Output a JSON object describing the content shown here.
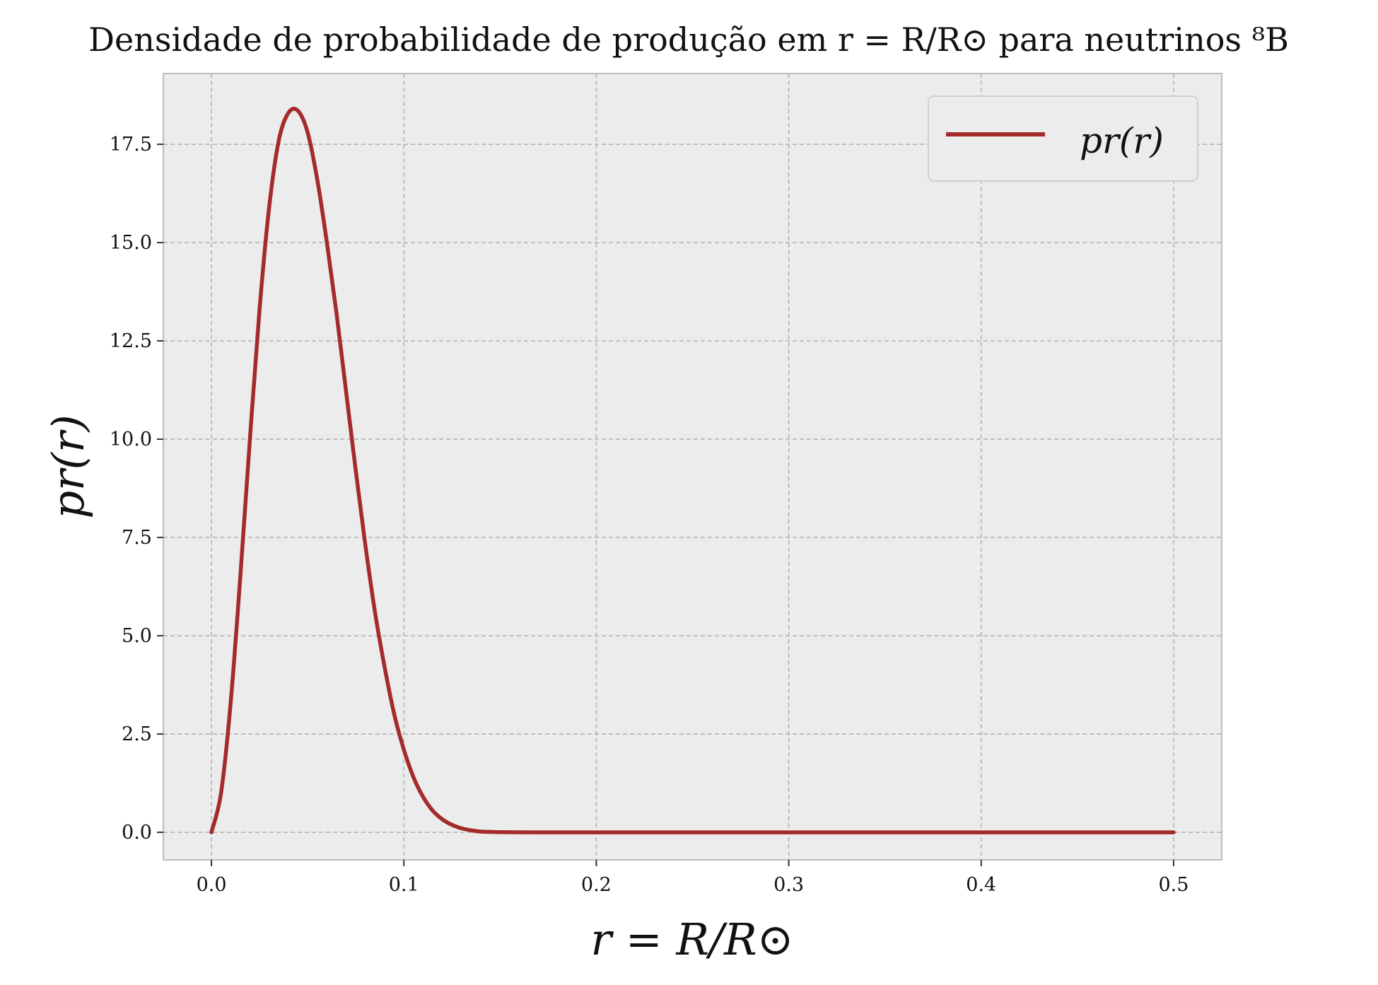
{
  "chart_data": {
    "type": "line",
    "title": "Densidade de probabilidade de produção em r = R/R⊙ para neutrinos ⁸B",
    "xlabel": "r = R/R⊙",
    "ylabel": "pr(r)",
    "xlim": [
      -0.025,
      0.525
    ],
    "ylim": [
      -0.7,
      19.3
    ],
    "x_ticks": [
      0.0,
      0.1,
      0.2,
      0.3,
      0.4,
      0.5
    ],
    "x_tick_labels": [
      "0.0",
      "0.1",
      "0.2",
      "0.3",
      "0.4",
      "0.5"
    ],
    "y_ticks": [
      0.0,
      2.5,
      5.0,
      7.5,
      10.0,
      12.5,
      15.0,
      17.5
    ],
    "y_tick_labels": [
      "0.0",
      "2.5",
      "5.0",
      "7.5",
      "10.0",
      "12.5",
      "15.0",
      "17.5"
    ],
    "grid": true,
    "legend_position": "top-right",
    "background_color": "#ececec",
    "series": [
      {
        "name": "pr(r)",
        "color": "#a52a2a",
        "x": [
          0.0,
          0.005,
          0.01,
          0.015,
          0.02,
          0.025,
          0.03,
          0.035,
          0.04,
          0.045,
          0.05,
          0.055,
          0.06,
          0.065,
          0.07,
          0.075,
          0.08,
          0.085,
          0.09,
          0.095,
          0.1,
          0.105,
          0.11,
          0.115,
          0.12,
          0.125,
          0.13,
          0.135,
          0.14,
          0.15,
          0.16,
          0.17,
          0.18,
          0.2,
          0.25,
          0.3,
          0.35,
          0.4,
          0.45,
          0.5
        ],
        "y": [
          0.0,
          1.0,
          3.3,
          6.5,
          10.0,
          13.3,
          15.9,
          17.6,
          18.3,
          18.35,
          17.8,
          16.6,
          15.0,
          13.2,
          11.2,
          9.2,
          7.3,
          5.6,
          4.2,
          3.0,
          2.1,
          1.4,
          0.9,
          0.55,
          0.33,
          0.19,
          0.1,
          0.05,
          0.02,
          0.005,
          0.001,
          0.0,
          0.0,
          0.0,
          0.0,
          0.0,
          0.0,
          0.0,
          0.0,
          0.0
        ]
      }
    ]
  }
}
